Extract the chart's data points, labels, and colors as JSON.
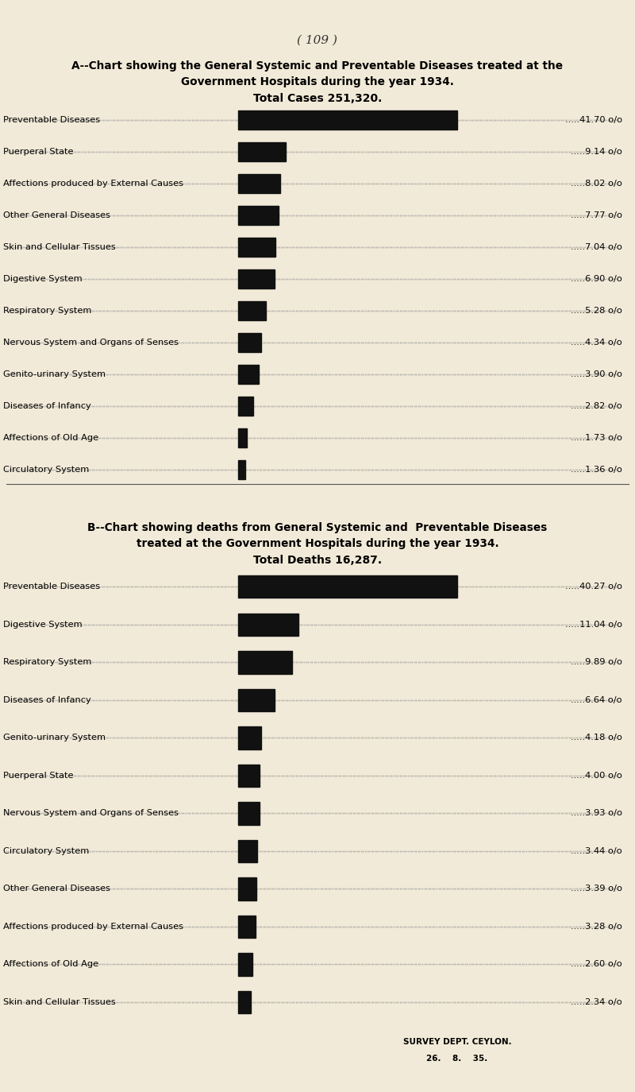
{
  "bg_color": "#f2ead8",
  "page_num": "( 109 )",
  "chart_a": {
    "title_line1": "A--Chart showing the General Systemic and Preventable Diseases treated at the",
    "title_line2": "Government Hospitals during the year 1934.",
    "title_line3": "Total Cases 251,320.",
    "categories": [
      "Preventable Diseases",
      "Puerperal State",
      "Affections produced by External Causes",
      "Other General Diseases",
      "Skin and Cellular Tissues",
      "Digestive System",
      "Respiratory System",
      "Nervous System and Organs of Senses",
      "Genito-urinary System",
      "Diseases of Infancy",
      "Affections of Old Age",
      "Circulatory System"
    ],
    "values": [
      41.7,
      9.14,
      8.02,
      7.77,
      7.04,
      6.9,
      5.28,
      4.34,
      3.9,
      2.82,
      1.73,
      1.36
    ],
    "labels": [
      "41.70 o/o",
      "9.14 o/o",
      "8.02 o/o",
      "7.77 o/o",
      "7.04 o/o",
      "6.90 o/o",
      "5.28 o/o",
      "4.34 o/o",
      "3.90 o/o",
      "2.82 o/o",
      "1.73 o/o",
      "1.36 o/o"
    ]
  },
  "chart_b": {
    "title_line1": "B--Chart showing deaths from General Systemic and  Preventable Diseases",
    "title_line2": "treated at the Government Hospitals during the year 1934.",
    "title_line3": "Total Deaths 16,287.",
    "categories": [
      "Preventable Diseases",
      "Digestive System",
      "Respiratory System",
      "Diseases of Infancy",
      "Genito-urinary System",
      "Puerperal State",
      "Nervous System and Organs of Senses",
      "Circulatory System",
      "Other General Diseases",
      "Affections produced by External Causes",
      "Affections of Old Age",
      "Skin and Cellular Tissues"
    ],
    "values": [
      40.27,
      11.04,
      9.89,
      6.64,
      4.18,
      4.0,
      3.93,
      3.44,
      3.39,
      3.28,
      2.6,
      2.34
    ],
    "labels": [
      "40.27 o/o",
      "11.04 o/o",
      "9.89 o/o",
      "6.64 o/o",
      "4.18 o/o",
      "4.00 o/o",
      "3.93 o/o",
      "3.44 o/o",
      "3.39 o/o",
      "3.28 o/o",
      "2.60 o/o",
      "2.34 o/o"
    ]
  },
  "bar_color": "#111111",
  "footer_line1": "SURVEY DEPT. CEYLON.",
  "footer_line2": "26.    8.    35."
}
